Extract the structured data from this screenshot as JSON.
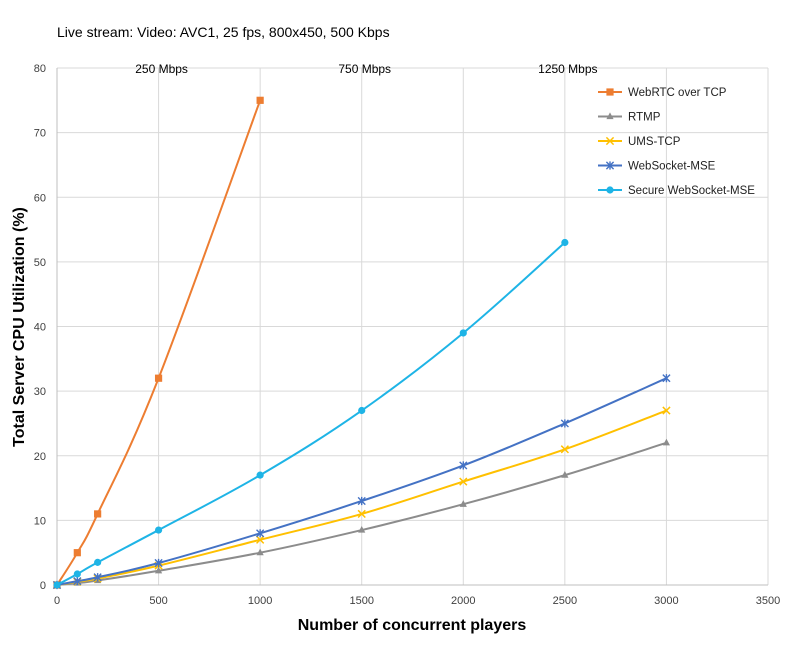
{
  "chart_data": {
    "type": "line",
    "title": "Live stream:     Video: AVC1, 25 fps, 800x450, 500 Kbps",
    "xlabel": "Number of concurrent players",
    "ylabel": "Total Server CPU Utilization (%)",
    "xlim": [
      0,
      3500
    ],
    "ylim": [
      0,
      80
    ],
    "xticks": [
      0,
      500,
      1000,
      1500,
      2000,
      2500,
      3000,
      3500
    ],
    "yticks": [
      0,
      10,
      20,
      30,
      40,
      50,
      60,
      70,
      80
    ],
    "grid": true,
    "legend": "top-right",
    "annotations": [
      {
        "text": "250 Mbps",
        "x": 500
      },
      {
        "text": "750 Mbps",
        "x": 1500
      },
      {
        "text": "1250 Mbps",
        "x": 2500
      }
    ],
    "series": [
      {
        "name": "WebRTC over TCP",
        "color": "#ED7D31",
        "marker": "square",
        "x": [
          0,
          100,
          200,
          500,
          1000
        ],
        "y": [
          0,
          5,
          11,
          32,
          75
        ]
      },
      {
        "name": "RTMP",
        "color": "#8C8C8C",
        "marker": "triangle",
        "x": [
          0,
          100,
          200,
          500,
          1000,
          1500,
          2000,
          2500,
          3000
        ],
        "y": [
          0,
          0.3,
          0.7,
          2.2,
          5,
          8.5,
          12.5,
          17,
          22
        ]
      },
      {
        "name": "UMS-TCP",
        "color": "#FFC000",
        "marker": "x",
        "x": [
          0,
          100,
          200,
          500,
          1000,
          1500,
          2000,
          2500,
          3000
        ],
        "y": [
          0,
          0.5,
          1,
          3,
          7,
          11,
          16,
          21,
          27
        ]
      },
      {
        "name": "WebSocket-MSE",
        "color": "#4472C4",
        "marker": "star",
        "x": [
          0,
          100,
          200,
          500,
          1000,
          1500,
          2000,
          2500,
          3000
        ],
        "y": [
          0,
          0.6,
          1.2,
          3.4,
          8,
          13,
          18.5,
          25,
          32
        ]
      },
      {
        "name": "Secure WebSocket-MSE",
        "color": "#1EB4E6",
        "marker": "circle",
        "x": [
          0,
          100,
          200,
          500,
          1000,
          1500,
          2000,
          2500
        ],
        "y": [
          0,
          1.7,
          3.5,
          8.5,
          17,
          27,
          39,
          53
        ]
      }
    ]
  }
}
